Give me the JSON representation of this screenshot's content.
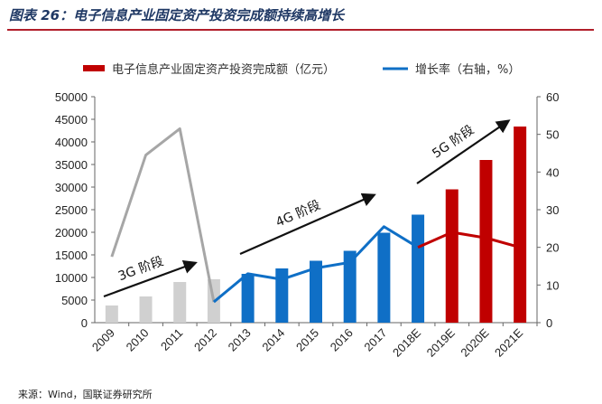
{
  "figure": {
    "title": "图表 26：电子信息产业固定资产投资完成额持续高增长",
    "source": "来源：Wind，国联证券研究所"
  },
  "colors": {
    "title": "#1f3864",
    "rule": "#b11e2a",
    "bar_historic": "#d0d0d0",
    "bar_4g": "#0f6fc6",
    "bar_5g": "#c00000",
    "line_3g": "#a6a6a6",
    "line_4g": "#0f6fc6",
    "line_5g": "#c00000"
  },
  "chart_data": {
    "type": "bar+line",
    "categories": [
      "2009",
      "2010",
      "2011",
      "2012",
      "2013",
      "2014",
      "2015",
      "2016",
      "2017",
      "2018E",
      "2019E",
      "2020E",
      "2021E"
    ],
    "series": [
      {
        "name": "电子信息产业固定资产投资完成额（亿元）",
        "kind": "bar",
        "axis": "left",
        "values": [
          3800,
          5800,
          9000,
          9600,
          10800,
          12000,
          13700,
          15900,
          19900,
          23900,
          29500,
          36000,
          43400
        ]
      },
      {
        "name": "增长率（右轴，%）",
        "kind": "line",
        "axis": "right",
        "values": [
          17.5,
          44.5,
          51.5,
          5.5,
          13,
          11.5,
          14.5,
          16,
          25.5,
          20,
          24,
          22.5,
          20
        ]
      }
    ],
    "y_left": {
      "min": 0,
      "max": 50000,
      "ticks": [
        0,
        5000,
        10000,
        15000,
        20000,
        25000,
        30000,
        35000,
        40000,
        45000,
        50000
      ]
    },
    "y_right": {
      "min": 0,
      "max": 60,
      "ticks": [
        0,
        10,
        20,
        30,
        40,
        50,
        60
      ]
    },
    "legend_position": "top",
    "annotations": [
      {
        "text": "3G 阶段",
        "from_category": "2009",
        "to_category": "2012"
      },
      {
        "text": "4G 阶段",
        "from_category": "2013",
        "to_category": "2018E"
      },
      {
        "text": "5G 阶段",
        "from_category": "2018E",
        "to_category": "2021E"
      }
    ]
  }
}
